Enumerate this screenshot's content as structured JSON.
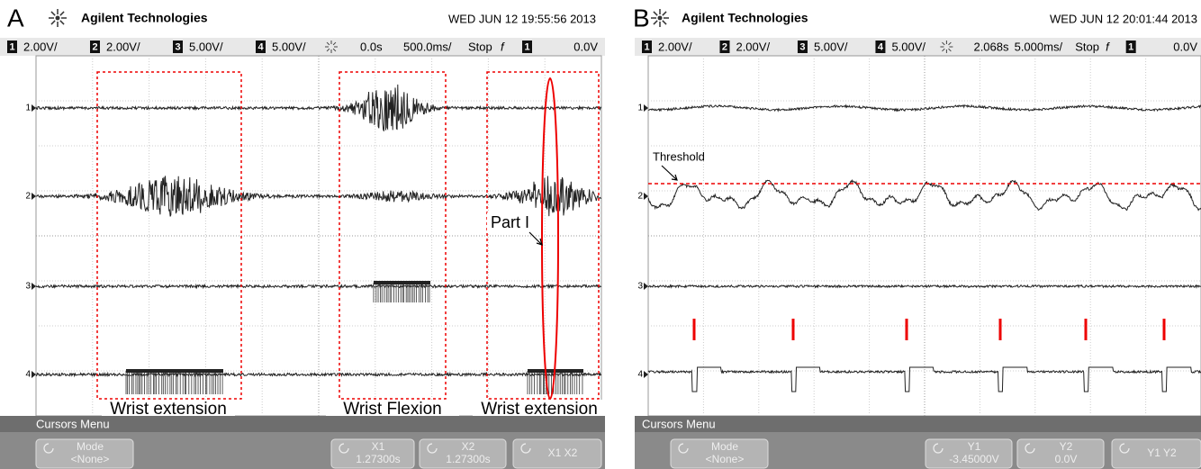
{
  "panels": [
    {
      "label": "A",
      "brand": "Agilent Technologies",
      "datetime": "WED JUN 12 19:55:56 2013",
      "status": {
        "channels": [
          {
            "num": "1",
            "scale": "2.00V/"
          },
          {
            "num": "2",
            "scale": "2.00V/"
          },
          {
            "num": "3",
            "scale": "5.00V/"
          },
          {
            "num": "4",
            "scale": "5.00V/"
          }
        ],
        "delay": "0.0s",
        "timebase": "500.0ms/",
        "run_state": "Stop",
        "trigger_slope": "f",
        "trigger_source": "1",
        "trigger_level": "0.0V"
      },
      "channel_markers": [
        "1",
        "2",
        "3",
        "4"
      ],
      "annotations": [
        "Wrist extension",
        "Wrist Flexion",
        "Wrist extension",
        "Part I"
      ],
      "menu": {
        "title": "Cursors Menu",
        "buttons": [
          {
            "label": "Mode",
            "value": "<None>"
          },
          {
            "label": "X1",
            "value": "1.27300s"
          },
          {
            "label": "X2",
            "value": "1.27300s"
          },
          {
            "label": "X1 X2"
          }
        ]
      }
    },
    {
      "label": "B",
      "brand": "Agilent Technologies",
      "datetime": "WED JUN 12 20:01:44 2013",
      "status": {
        "channels": [
          {
            "num": "1",
            "scale": "2.00V/"
          },
          {
            "num": "2",
            "scale": "2.00V/"
          },
          {
            "num": "3",
            "scale": "5.00V/"
          },
          {
            "num": "4",
            "scale": "5.00V/"
          }
        ],
        "delay": "2.068s",
        "timebase": "5.000ms/",
        "run_state": "Stop",
        "trigger_slope": "f",
        "trigger_source": "1",
        "trigger_level": "0.0V"
      },
      "channel_markers": [
        "1",
        "2",
        "3",
        "4"
      ],
      "annotations": [
        "Threshold"
      ],
      "menu": {
        "title": "Cursors Menu",
        "buttons": [
          {
            "label": "Mode",
            "value": "<None>"
          },
          {
            "label": "Y1",
            "value": "-3.45000V"
          },
          {
            "label": "Y2",
            "value": "0.0V"
          },
          {
            "label": "Y1 Y2"
          }
        ]
      }
    }
  ]
}
